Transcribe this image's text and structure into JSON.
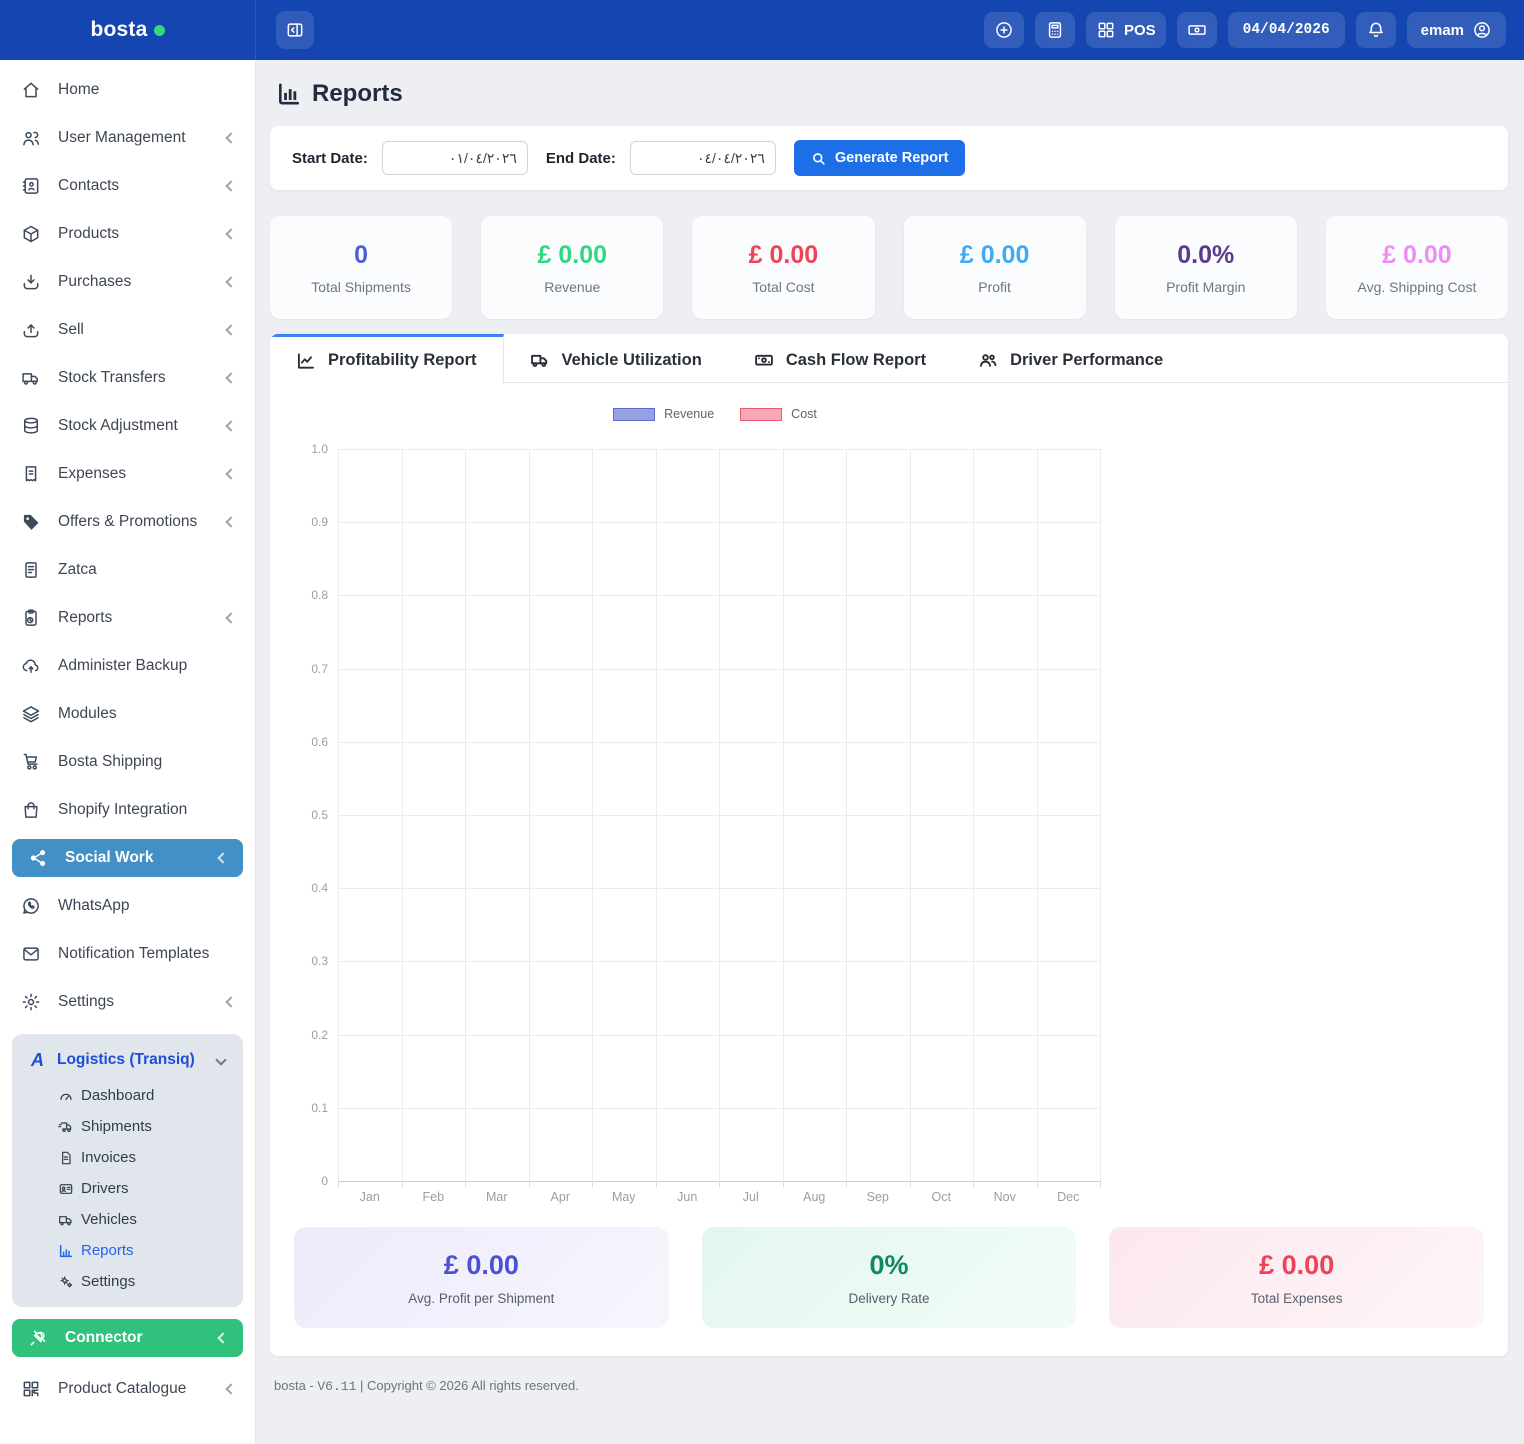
{
  "topbar": {
    "brand": "bosta",
    "toggle_icon": "sidebar-collapse-icon",
    "buttons": [
      {
        "icon": "circle-plus-icon"
      },
      {
        "icon": "calculator-icon"
      },
      {
        "icon": "grid-icon",
        "label": "POS"
      },
      {
        "icon": "cash-register-icon"
      },
      {
        "type": "date",
        "label": "04/04/2026"
      },
      {
        "icon": "bell-icon"
      },
      {
        "icon": "user-circle-icon",
        "label": "emam"
      }
    ]
  },
  "sidebar": {
    "items": [
      {
        "label": "Home",
        "icon": "home-icon",
        "chevron": false
      },
      {
        "label": "User Management",
        "icon": "users-icon",
        "chevron": true
      },
      {
        "label": "Contacts",
        "icon": "address-book-icon",
        "chevron": true
      },
      {
        "label": "Products",
        "icon": "box-icon",
        "chevron": true
      },
      {
        "label": "Purchases",
        "icon": "arrow-down-bracket-icon",
        "chevron": true
      },
      {
        "label": "Sell",
        "icon": "arrow-up-bracket-icon",
        "chevron": true
      },
      {
        "label": "Stock Transfers",
        "icon": "truck-icon",
        "chevron": true
      },
      {
        "label": "Stock Adjustment",
        "icon": "database-icon",
        "chevron": true
      },
      {
        "label": "Expenses",
        "icon": "receipt-icon",
        "chevron": true
      },
      {
        "label": "Offers & Promotions",
        "icon": "tag-icon",
        "chevron": true
      },
      {
        "label": "Zatca",
        "icon": "invoice-icon",
        "chevron": false
      },
      {
        "label": "Reports",
        "icon": "clipboard-clock-icon",
        "chevron": true
      },
      {
        "label": "Administer Backup",
        "icon": "cloud-upload-icon",
        "chevron": false
      },
      {
        "label": "Modules",
        "icon": "layers-icon",
        "chevron": false
      },
      {
        "label": "Bosta Shipping",
        "icon": "cart-icon",
        "chevron": false
      },
      {
        "label": "Shopify Integration",
        "icon": "shopping-bag-icon",
        "chevron": false
      },
      {
        "label": "Social Work",
        "icon": "share-icon",
        "chevron": true,
        "highlight": "#4290c5"
      },
      {
        "label": "WhatsApp",
        "icon": "whatsapp-icon",
        "chevron": false
      },
      {
        "label": "Notification Templates",
        "icon": "envelope-icon",
        "chevron": false
      },
      {
        "label": "Settings",
        "icon": "gear-icon",
        "chevron": true
      }
    ],
    "logistics": {
      "title": "Logistics (Transiq)",
      "logo_icon": "transiq-logo-icon",
      "items": [
        {
          "label": "Dashboard",
          "icon": "gauge-icon"
        },
        {
          "label": "Shipments",
          "icon": "truck-fast-icon"
        },
        {
          "label": "Invoices",
          "icon": "file-invoice-icon"
        },
        {
          "label": "Drivers",
          "icon": "id-card-icon"
        },
        {
          "label": "Vehicles",
          "icon": "truck-icon"
        },
        {
          "label": "Reports",
          "icon": "chart-column-icon",
          "active": true
        },
        {
          "label": "Settings",
          "icon": "gears-icon"
        }
      ]
    },
    "connector_label": "Connector",
    "connector_icon": "plug-icon",
    "product_catalogue_label": "Product Catalogue",
    "product_catalogue_icon": "qr-code-icon"
  },
  "page": {
    "title": "Reports",
    "title_icon": "bar-chart-icon",
    "filter": {
      "start_label": "Start Date:",
      "start_value": "٠١/٠٤/٢٠٢٦",
      "end_label": "End Date:",
      "end_value": "٠٤/٠٤/٢٠٢٦",
      "generate_label": "Generate Report",
      "generate_icon": "search-icon"
    },
    "stats": [
      {
        "value": "0",
        "label": "Total Shipments",
        "color": "#4c5fd5"
      },
      {
        "value": "£ 0.00",
        "label": "Revenue",
        "color": "#33d77f"
      },
      {
        "value": "£ 0.00",
        "label": "Total Cost",
        "color": "#ef4456"
      },
      {
        "value": "£ 0.00",
        "label": "Profit",
        "color": "#3eaaf4"
      },
      {
        "value": "0.0%",
        "label": "Profit Margin",
        "color": "#5c3a93"
      },
      {
        "value": "£ 0.00",
        "label": "Avg. Shipping Cost",
        "color": "#ef8df5"
      }
    ],
    "tabs": [
      {
        "label": "Profitability Report",
        "icon": "line-chart-icon",
        "active": true
      },
      {
        "label": "Vehicle Utilization",
        "icon": "truck-icon",
        "active": false
      },
      {
        "label": "Cash Flow Report",
        "icon": "money-icon",
        "active": false
      },
      {
        "label": "Driver Performance",
        "icon": "users-group-icon",
        "active": false
      }
    ],
    "summary": [
      {
        "value": "£ 0.00",
        "label": "Avg. Profit per Shipment",
        "color": "#4b50d6"
      },
      {
        "value": "0%",
        "label": "Delivery Rate",
        "color": "#0d8a63"
      },
      {
        "value": "£ 0.00",
        "label": "Total Expenses",
        "color": "#ee4258"
      }
    ],
    "footer": {
      "prefix": "bosta - ",
      "version": "V6.11",
      "suffix": " | Copyright © 2026 All rights reserved."
    }
  },
  "chart_data": {
    "type": "bar",
    "title": "",
    "categories": [
      "Jan",
      "Feb",
      "Mar",
      "Apr",
      "May",
      "Jun",
      "Jul",
      "Aug",
      "Sep",
      "Oct",
      "Nov",
      "Dec"
    ],
    "series": [
      {
        "name": "Revenue",
        "values": [
          0,
          0,
          0,
          0,
          0,
          0,
          0,
          0,
          0,
          0,
          0,
          0
        ]
      },
      {
        "name": "Cost",
        "values": [
          0,
          0,
          0,
          0,
          0,
          0,
          0,
          0,
          0,
          0,
          0,
          0
        ]
      }
    ],
    "xlabel": "",
    "ylabel": "",
    "ylim": [
      0,
      1.0
    ],
    "ytick_labels": [
      "1.0",
      "0.9",
      "0.8",
      "0.7",
      "0.6",
      "0.5",
      "0.4",
      "0.3",
      "0.2",
      "0.1",
      "0"
    ],
    "grid": true,
    "legend_position": "top",
    "colors": {
      "revenue_fill": "#97a1e2",
      "revenue_border": "#5b6ad0",
      "cost_fill": "#f6a8b4",
      "cost_border": "#eb5a6f"
    }
  }
}
